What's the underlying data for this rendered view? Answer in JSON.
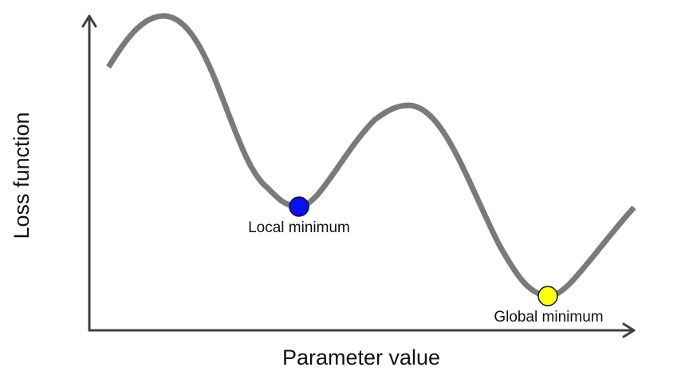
{
  "axes": {
    "x_label": "Parameter value",
    "y_label": "Loss function"
  },
  "markers": {
    "local": {
      "label": "Local minimum",
      "color": "#0a10f0"
    },
    "global": {
      "label": "Global minimum",
      "color": "#ffff10"
    }
  },
  "colors": {
    "curve": "#7a7a7a",
    "axis": "#3f3f3f"
  }
}
